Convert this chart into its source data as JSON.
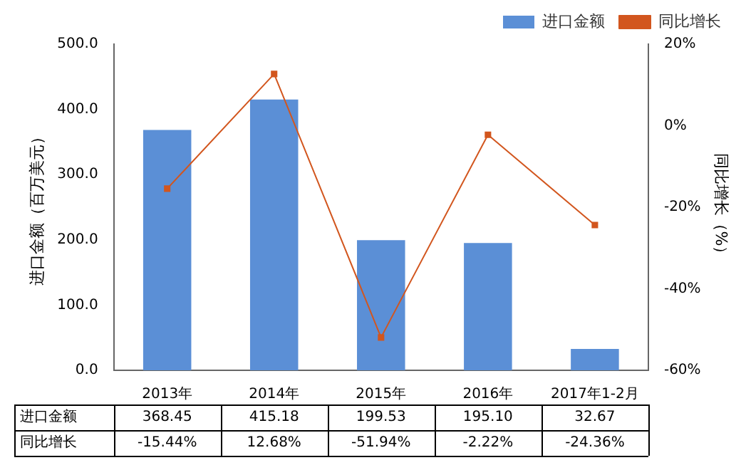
{
  "chart_data": {
    "type": "bar",
    "categories": [
      "2013年",
      "2014年",
      "2015年",
      "2016年",
      "2017年1-2月"
    ],
    "series": [
      {
        "name": "进口金额",
        "color": "#5b8fd6",
        "values": [
          368.45,
          415.18,
          199.53,
          195.1,
          32.67
        ],
        "value_labels": [
          "368.45",
          "415.18",
          "199.53",
          "195.10",
          "32.67"
        ]
      },
      {
        "name": "同比增长",
        "type": "line",
        "axis": "y2",
        "color": "#d2561e",
        "values": [
          -15.44,
          12.68,
          -51.94,
          -2.22,
          -24.36
        ],
        "value_labels": [
          "-15.44%",
          "12.68%",
          "-51.94%",
          "-2.22%",
          "-24.36%"
        ]
      }
    ],
    "ylabel": "进口金额（百万美元）",
    "y2label": "同比增长（%）",
    "ylim": [
      0,
      500
    ],
    "yticks": [
      {
        "value": 0,
        "label": "0.0"
      },
      {
        "value": 100,
        "label": "100.0"
      },
      {
        "value": 200,
        "label": "200.0"
      },
      {
        "value": 300,
        "label": "300.0"
      },
      {
        "value": 400,
        "label": "400.0"
      },
      {
        "value": 500,
        "label": "500.0"
      }
    ],
    "y2lim": [
      -60,
      20
    ],
    "y2ticks": [
      {
        "value": -60,
        "label": "-60%"
      },
      {
        "value": -40,
        "label": "-40%"
      },
      {
        "value": -20,
        "label": "-20%"
      },
      {
        "value": 0,
        "label": "0%"
      },
      {
        "value": 20,
        "label": "20%"
      }
    ],
    "legend": "top right",
    "marker": "square",
    "line_style": "solid",
    "grid": false
  }
}
